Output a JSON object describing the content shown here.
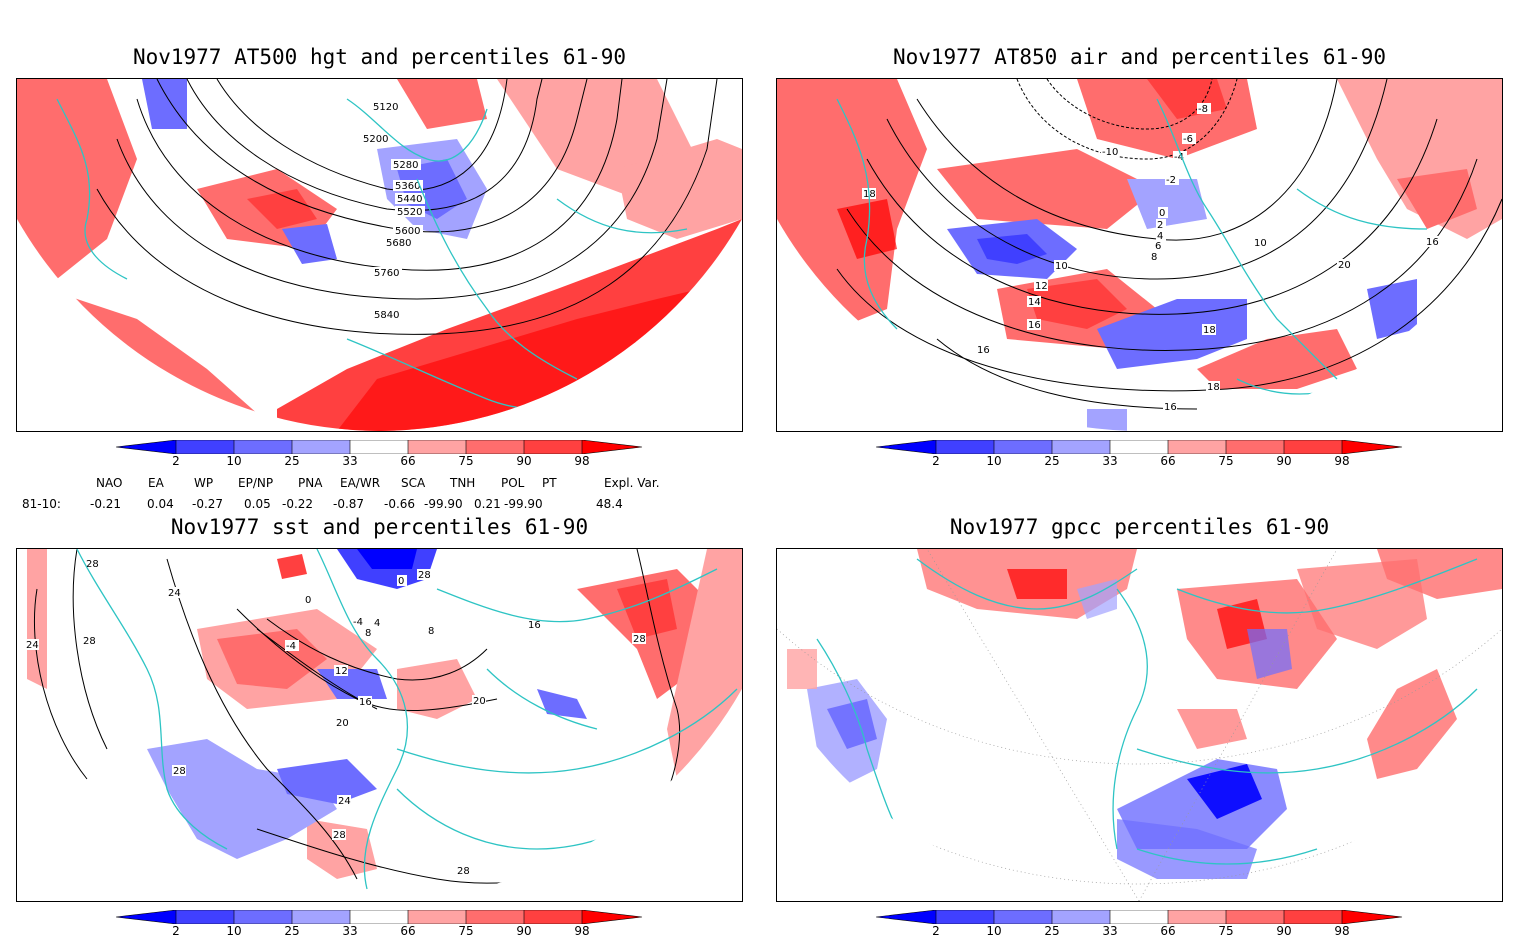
{
  "panels": [
    {
      "title": "Nov1977 AT500 hgt and percentiles 61-90",
      "contour_labels": [
        "5120",
        "5200",
        "5280",
        "5360",
        "5440",
        "5520",
        "5600",
        "5680",
        "5760",
        "5840"
      ]
    },
    {
      "title": "Nov1977 AT850 air and percentiles 61-90",
      "contour_labels": [
        "-8",
        "-6",
        "-4",
        "-2",
        "-10",
        "0",
        "2",
        "4",
        "6",
        "8",
        "10",
        "12",
        "14",
        "16",
        "18",
        "20",
        "16",
        "18",
        "16",
        "18",
        "10",
        "16"
      ]
    },
    {
      "title": "Nov1977 sst and percentiles 61-90",
      "contour_labels": [
        "28",
        "24",
        "28",
        "24",
        "0",
        "0",
        "-4",
        "-4",
        "8",
        "4",
        "12",
        "16",
        "20",
        "20",
        "24",
        "28",
        "28",
        "28",
        "28",
        "16",
        "8",
        "28"
      ]
    },
    {
      "title": "Nov1977 gpcc percentiles 61-90",
      "contour_labels": []
    }
  ],
  "colorbar": {
    "labels": [
      "2",
      "10",
      "25",
      "33",
      "66",
      "75",
      "90",
      "98"
    ],
    "colors": {
      "dark_blue": "#0000ff",
      "blue": "#4040ff",
      "mid_blue": "#6d6dff",
      "light_blue": "#a3a3ff",
      "light_red": "#ffa3a3",
      "red": "#ff6d6d",
      "mid_red": "#ff4040",
      "dark_red": "#ff0000"
    }
  },
  "indices": {
    "headers": [
      "NAO",
      "EA",
      "WP",
      "EP/NP",
      "PNA",
      "EA/WR",
      "SCA",
      "TNH",
      "POL",
      "PT",
      "Expl. Var."
    ],
    "row_label": "81-10:",
    "values": [
      "-0.21",
      "0.04",
      "-0.27",
      "0.05",
      "-0.22",
      "-0.87",
      "-0.66",
      "-99.90",
      "0.21",
      "-99.90",
      "48.4"
    ]
  },
  "map_colors": {
    "coast": "#2ec4c4",
    "contour": "#000000"
  }
}
